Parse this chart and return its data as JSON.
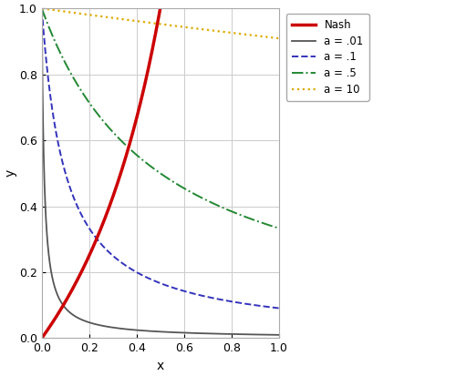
{
  "title": "",
  "xlabel": "x",
  "ylabel": "y",
  "xlim": [
    0.0,
    1.0
  ],
  "ylim": [
    0.0,
    1.0
  ],
  "figsize": [
    5.0,
    4.13
  ],
  "dpi": 100,
  "background_color": "#ffffff",
  "plot_bg_color": "#ffffff",
  "nash_color": "#cc0000",
  "nash_linewidth": 2.5,
  "curves": [
    {
      "a": 0.01,
      "color": "#555555",
      "linestyle": "solid",
      "linewidth": 1.3,
      "label": "a = .01"
    },
    {
      "a": 0.1,
      "color": "#3333bb",
      "linestyle": "dashed",
      "linewidth": 1.4,
      "label": "a = .1"
    },
    {
      "a": 0.5,
      "color": "#228833",
      "linestyle": "dashdot",
      "linewidth": 1.4,
      "label": "a = .5"
    },
    {
      "a": 10.0,
      "color": "#ddaa00",
      "linestyle": "dotted",
      "linewidth": 1.6,
      "label": "a = 10"
    }
  ],
  "legend_nash_label": "Nash",
  "grid_color": "#cccccc",
  "tick_fontsize": 9,
  "label_fontsize": 10,
  "spine_color": "#aaaaaa"
}
